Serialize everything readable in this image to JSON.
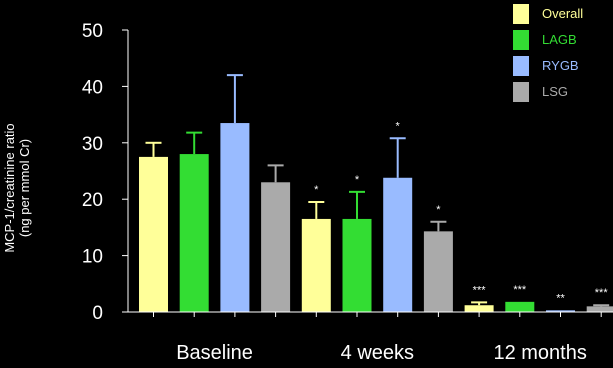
{
  "chart_data": {
    "type": "bar",
    "groups": [
      "Baseline",
      "4 weeks",
      "12 months"
    ],
    "series": [
      {
        "name": "Overall",
        "color": "#FFFF99",
        "values": [
          27.5,
          16.5,
          1.2
        ],
        "errors": [
          2.5,
          3.0,
          0.5
        ]
      },
      {
        "name": "LAGB",
        "color": "#33DD33",
        "values": [
          28.0,
          16.5,
          1.8
        ],
        "errors": [
          3.8,
          4.8,
          0.0
        ]
      },
      {
        "name": "RYGB",
        "color": "#99BBFF",
        "values": [
          33.5,
          23.8,
          0.3
        ],
        "errors": [
          8.5,
          7.0,
          0.0
        ]
      },
      {
        "name": "LSG",
        "color": "#AAAAAA",
        "values": [
          23.0,
          14.3,
          1.0
        ],
        "errors": [
          3.0,
          1.7,
          0.2
        ]
      }
    ],
    "significance": [
      [
        "",
        "",
        "",
        ""
      ],
      [
        "*",
        "*",
        "*",
        "*"
      ],
      [
        "***",
        "***",
        "**",
        "***"
      ]
    ],
    "ylabel_line1": "MCP-1/creatinine ratio",
    "ylabel_line2": "(ng per mmol Cr)",
    "ylim": [
      0,
      50
    ],
    "yticks": [
      0,
      10,
      20,
      30,
      40,
      50
    ],
    "legend_position": "top-right",
    "background": "#000000"
  }
}
